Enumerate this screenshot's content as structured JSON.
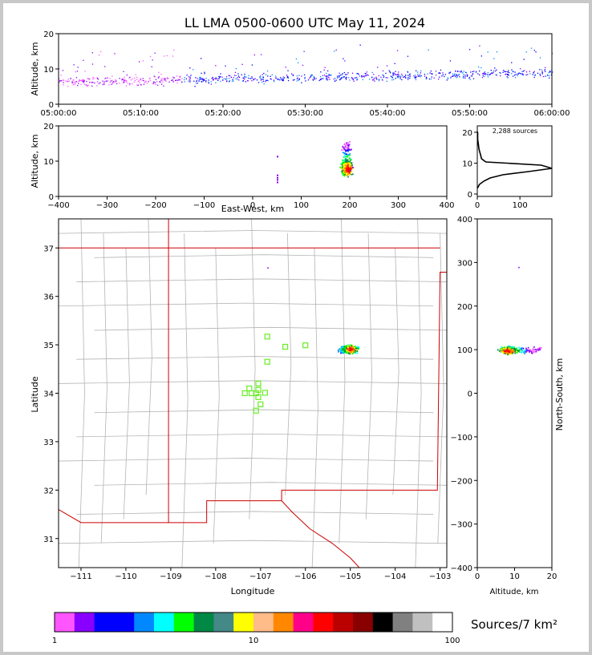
{
  "title": "LL LMA 0500-0600 UTC May 11, 2024",
  "colors": {
    "frame_bg": "#c8c8c8",
    "state_border": "#cc0000",
    "county_line": "#aaaaaa",
    "station_marker": "#66ee22"
  },
  "time_panel": {
    "ylabel": "Altitude, km",
    "ylim": [
      0,
      20
    ],
    "yticks": [
      "0",
      "10",
      "20"
    ],
    "xticks": [
      "05:00:00",
      "05:10:00",
      "05:20:00",
      "05:30:00",
      "05:40:00",
      "05:50:00",
      "06:00:00"
    ]
  },
  "ew_panel": {
    "ylabel": "Altitude, km",
    "xlabel": "East-West, km",
    "xlim": [
      -400,
      400
    ],
    "ylim": [
      0,
      20
    ],
    "xticks": [
      "−400",
      "−300",
      "−200",
      "−100",
      "0",
      "100",
      "200",
      "300",
      "400"
    ],
    "yticks": [
      "0",
      "10",
      "20"
    ]
  },
  "hist_panel": {
    "label": "2,288 sources",
    "xticks": [
      "0",
      "100"
    ],
    "yticks": [
      "0",
      "10",
      "20"
    ]
  },
  "map_panel": {
    "xlabel": "Longitude",
    "ylabel": "Latitude",
    "xlim": [
      -111.5,
      -102.85
    ],
    "ylim": [
      30.4,
      37.6
    ],
    "xticks": [
      "−111",
      "−110",
      "−109",
      "−108",
      "−107",
      "−106",
      "−105",
      "−104",
      "−103"
    ],
    "yticks": [
      "31",
      "32",
      "33",
      "34",
      "35",
      "36",
      "37"
    ]
  },
  "ns_panel": {
    "xlabel": "Altitude, km",
    "ylabel": "North-South, km",
    "xlim": [
      0,
      20
    ],
    "ylim": [
      -400,
      400
    ],
    "xticks": [
      "0",
      "10",
      "20"
    ],
    "yticks": [
      "−400",
      "−300",
      "−200",
      "−100",
      "0",
      "100",
      "200",
      "300",
      "400"
    ]
  },
  "colorbar": {
    "label": "Sources/7 km²",
    "ticks": [
      "1",
      "10",
      "100"
    ],
    "colors": [
      "#ff55ff",
      "#8800ff",
      "#0000ff",
      "#0000ff",
      "#0088ff",
      "#00ffff",
      "#00ff00",
      "#008844",
      "#448888",
      "#ffff00",
      "#ffbb88",
      "#ff8800",
      "#ff0088",
      "#ff0000",
      "#bb0000",
      "#880000",
      "#000000",
      "#808080",
      "#c0c0c0",
      "#ffffff"
    ]
  },
  "chart_data": {
    "type": "scatter",
    "title": "LL LMA 0500-0600 UTC May 11, 2024",
    "total_sources": 2288,
    "source_cluster": {
      "lon": [
        -105.4,
        -104.8
      ],
      "lat": [
        34.75,
        35.1
      ],
      "altitude_km": [
        3,
        19
      ],
      "peak_altitude_km": 8,
      "east_west_km": [
        160,
        225
      ],
      "north_south_km": [
        85,
        120
      ]
    },
    "stations": [
      {
        "lon": -106.85,
        "lat": 35.17
      },
      {
        "lon": -106.45,
        "lat": 34.96
      },
      {
        "lon": -106.0,
        "lat": 34.99
      },
      {
        "lon": -106.85,
        "lat": 34.65
      },
      {
        "lon": -107.05,
        "lat": 34.2
      },
      {
        "lon": -107.25,
        "lat": 34.1
      },
      {
        "lon": -107.05,
        "lat": 34.07
      },
      {
        "lon": -107.35,
        "lat": 34.0
      },
      {
        "lon": -107.2,
        "lat": 34.0
      },
      {
        "lon": -107.1,
        "lat": 34.0
      },
      {
        "lon": -106.9,
        "lat": 34.01
      },
      {
        "lon": -107.05,
        "lat": 33.92
      },
      {
        "lon": -107.0,
        "lat": 33.77
      },
      {
        "lon": -107.1,
        "lat": 33.64
      }
    ],
    "altitude_histogram": {
      "altitude_km": [
        3,
        4,
        5,
        6,
        7,
        8,
        9,
        10,
        11,
        12,
        13,
        14,
        15,
        16,
        17,
        18,
        19
      ],
      "counts": [
        5,
        15,
        30,
        60,
        120,
        175,
        150,
        20,
        10,
        8,
        6,
        4,
        3,
        2,
        1,
        1,
        1
      ]
    }
  }
}
